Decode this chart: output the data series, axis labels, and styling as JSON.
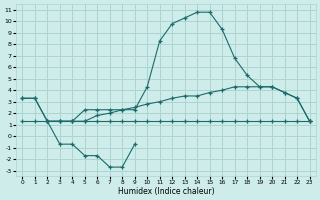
{
  "xlabel": "Humidex (Indice chaleur)",
  "bg_color": "#cdecea",
  "grid_color": "#aed4d1",
  "line_color": "#1a6b6a",
  "xlim": [
    -0.5,
    23.5
  ],
  "ylim": [
    -3.5,
    11.5
  ],
  "xticks": [
    0,
    1,
    2,
    3,
    4,
    5,
    6,
    7,
    8,
    9,
    10,
    11,
    12,
    13,
    14,
    15,
    16,
    17,
    18,
    19,
    20,
    21,
    22,
    23
  ],
  "yticks": [
    -3,
    -2,
    -1,
    0,
    1,
    2,
    3,
    4,
    5,
    6,
    7,
    8,
    9,
    10,
    11
  ],
  "line_peak_x": [
    0,
    1,
    2,
    3,
    4,
    5,
    6,
    7,
    8,
    9,
    10,
    11,
    12,
    13,
    14,
    15,
    16,
    17,
    18,
    19,
    20,
    21,
    22,
    23
  ],
  "line_peak_y": [
    3.3,
    3.3,
    1.3,
    1.3,
    1.3,
    2.3,
    2.3,
    2.3,
    2.3,
    2.3,
    4.3,
    8.3,
    9.8,
    10.3,
    10.8,
    10.8,
    9.3,
    6.8,
    5.3,
    4.3,
    4.3,
    3.8,
    3.3,
    1.3
  ],
  "line_upper_x": [
    0,
    1,
    2,
    3,
    4,
    5,
    6,
    7,
    8,
    9,
    10,
    11,
    12,
    13,
    14,
    15,
    16,
    17,
    18,
    19,
    20,
    21,
    22,
    23
  ],
  "line_upper_y": [
    3.3,
    3.3,
    1.3,
    1.3,
    1.3,
    1.3,
    1.8,
    2.0,
    2.3,
    2.5,
    2.8,
    3.0,
    3.3,
    3.5,
    3.5,
    3.8,
    4.0,
    4.3,
    4.3,
    4.3,
    4.3,
    3.8,
    3.3,
    1.3
  ],
  "line_lower_x": [
    0,
    1,
    2,
    3,
    4,
    5,
    6,
    7,
    8,
    9,
    10,
    11,
    12,
    13,
    14,
    15,
    16,
    17,
    18,
    19,
    20,
    21,
    22,
    23
  ],
  "line_lower_y": [
    1.3,
    1.3,
    1.3,
    1.3,
    1.3,
    1.3,
    1.3,
    1.3,
    1.3,
    1.3,
    1.3,
    1.3,
    1.3,
    1.3,
    1.3,
    1.3,
    1.3,
    1.3,
    1.3,
    1.3,
    1.3,
    1.3,
    1.3,
    1.3
  ],
  "line_zigzag_x": [
    2,
    3,
    4,
    5,
    6,
    7,
    8,
    9
  ],
  "line_zigzag_y": [
    1.3,
    -0.7,
    -0.7,
    -1.7,
    -1.7,
    -2.7,
    -2.7,
    -0.7
  ]
}
